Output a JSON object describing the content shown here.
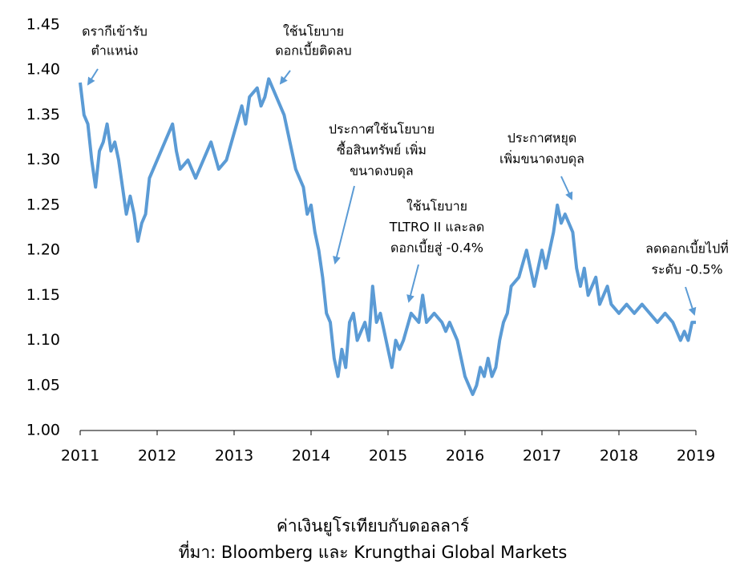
{
  "chart_data": {
    "type": "line",
    "title": "ค่าเงินยูโรเทียบกับดอลลาร์",
    "source": "ที่มา:  Bloomberg และ Krungthai Global Markets",
    "color": "#5b9bd5",
    "x": [
      2011.0,
      2011.05,
      2011.1,
      2011.15,
      2011.2,
      2011.25,
      2011.3,
      2011.35,
      2011.4,
      2011.45,
      2011.5,
      2011.55,
      2011.6,
      2011.65,
      2011.7,
      2011.75,
      2011.8,
      2011.85,
      2011.9,
      2012.0,
      2012.1,
      2012.2,
      2012.25,
      2012.3,
      2012.4,
      2012.5,
      2012.6,
      2012.7,
      2012.8,
      2012.9,
      2013.0,
      2013.1,
      2013.15,
      2013.2,
      2013.3,
      2013.35,
      2013.4,
      2013.45,
      2013.5,
      2013.55,
      2013.6,
      2013.65,
      2013.7,
      2013.75,
      2013.8,
      2013.9,
      2013.95,
      2014.0,
      2014.05,
      2014.1,
      2014.15,
      2014.2,
      2014.25,
      2014.3,
      2014.35,
      2014.4,
      2014.45,
      2014.5,
      2014.55,
      2014.6,
      2014.7,
      2014.75,
      2014.8,
      2014.85,
      2014.9,
      2015.0,
      2015.05,
      2015.1,
      2015.15,
      2015.2,
      2015.3,
      2015.4,
      2015.45,
      2015.5,
      2015.6,
      2015.7,
      2015.75,
      2015.8,
      2015.9,
      2015.95,
      2016.0,
      2016.05,
      2016.1,
      2016.15,
      2016.2,
      2016.25,
      2016.3,
      2016.35,
      2016.4,
      2016.45,
      2016.5,
      2016.55,
      2016.6,
      2016.7,
      2016.8,
      2016.85,
      2016.9,
      2017.0,
      2017.05,
      2017.1,
      2017.15,
      2017.2,
      2017.25,
      2017.3,
      2017.35,
      2017.4,
      2017.45,
      2017.5,
      2017.55,
      2017.6,
      2017.7,
      2017.75,
      2017.8,
      2017.85,
      2017.9,
      2018.0,
      2018.1,
      2018.2,
      2018.3,
      2018.4,
      2018.5,
      2018.6,
      2018.7,
      2018.8,
      2018.85,
      2018.9,
      2018.95,
      2019.0
    ],
    "values": [
      1.386,
      1.35,
      1.34,
      1.3,
      1.27,
      1.31,
      1.32,
      1.34,
      1.31,
      1.32,
      1.3,
      1.27,
      1.24,
      1.26,
      1.24,
      1.21,
      1.23,
      1.24,
      1.28,
      1.3,
      1.32,
      1.34,
      1.31,
      1.29,
      1.3,
      1.28,
      1.3,
      1.32,
      1.29,
      1.3,
      1.33,
      1.36,
      1.34,
      1.37,
      1.38,
      1.36,
      1.37,
      1.39,
      1.38,
      1.37,
      1.36,
      1.35,
      1.33,
      1.31,
      1.29,
      1.27,
      1.24,
      1.25,
      1.22,
      1.2,
      1.17,
      1.13,
      1.12,
      1.08,
      1.06,
      1.09,
      1.07,
      1.12,
      1.13,
      1.1,
      1.12,
      1.1,
      1.16,
      1.12,
      1.13,
      1.09,
      1.07,
      1.1,
      1.09,
      1.1,
      1.13,
      1.12,
      1.15,
      1.12,
      1.13,
      1.12,
      1.11,
      1.12,
      1.1,
      1.08,
      1.06,
      1.05,
      1.04,
      1.05,
      1.07,
      1.06,
      1.08,
      1.06,
      1.07,
      1.1,
      1.12,
      1.13,
      1.16,
      1.17,
      1.2,
      1.18,
      1.16,
      1.2,
      1.18,
      1.2,
      1.22,
      1.25,
      1.23,
      1.24,
      1.23,
      1.22,
      1.18,
      1.16,
      1.18,
      1.15,
      1.17,
      1.14,
      1.15,
      1.16,
      1.14,
      1.13,
      1.14,
      1.13,
      1.14,
      1.13,
      1.12,
      1.13,
      1.12,
      1.1,
      1.11,
      1.1,
      1.12,
      1.12
    ],
    "xlim": [
      2011,
      2019
    ],
    "xticks": [
      2011,
      2012,
      2013,
      2014,
      2015,
      2016,
      2017,
      2018,
      2019
    ],
    "ylim": [
      1.0,
      1.45
    ],
    "yticks": [
      {
        "value": 1.0,
        "label": "1.00"
      },
      1.05,
      {
        "value": 1.1,
        "label": "1.10"
      },
      1.15,
      {
        "value": 1.2,
        "label": "1.20"
      },
      1.25,
      {
        "value": 1.3,
        "label": "1.30"
      },
      1.35,
      {
        "value": 1.4,
        "label": "1.40"
      },
      1.45
    ],
    "annotations": [
      [
        "ดรากีเข้ารับ",
        "ตำแหน่ง"
      ],
      [
        "ใช้นโยบาย",
        "ดอกเบี้ยติดลบ"
      ],
      [
        "ประกาศใช้นโยบาย",
        "ซื้อสินทรัพย์ เพิ่ม",
        "ขนาดงบดุล"
      ],
      [
        "ใช้นโยบาย",
        "TLTRO II และลด",
        "ดอกเบี้ยสู่ -0.4%"
      ],
      [
        "ประกาศหยุด",
        "เพิ่มขนาดงบดุล"
      ],
      [
        "ลดดอกเบี้ยไปที่",
        "ระดับ -0.5%"
      ]
    ]
  }
}
